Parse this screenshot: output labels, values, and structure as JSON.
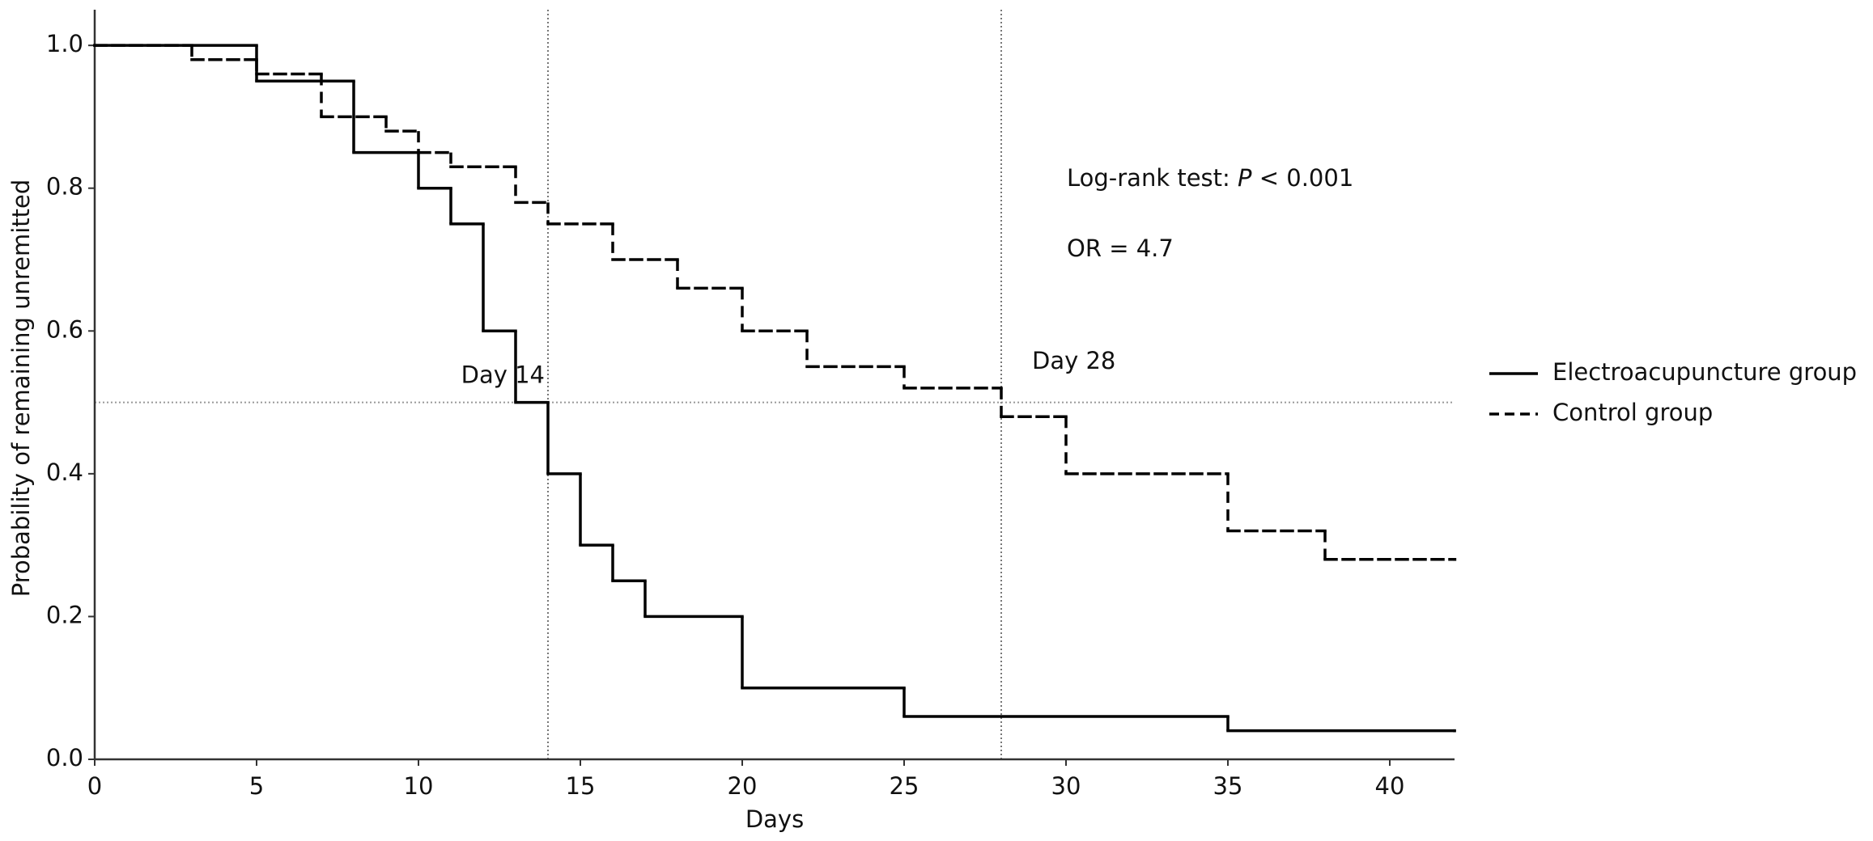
{
  "chart_data": {
    "type": "step",
    "x_label": "Days",
    "y_label": "Probability of remaining unremitted",
    "xlim": [
      0,
      42
    ],
    "ylim": [
      0,
      1.05
    ],
    "xticks": [
      0,
      5,
      10,
      15,
      20,
      25,
      30,
      35,
      40
    ],
    "yticks": [
      {
        "value": 0,
        "label": "0.0"
      },
      0.2,
      0.4,
      0.6,
      0.8,
      {
        "value": 1,
        "label": "1.0"
      }
    ],
    "legend": "right",
    "series": [
      {
        "name": "Electroacupuncture group",
        "color": "#000000",
        "dash": "solid",
        "x": [
          0,
          5,
          8,
          10,
          11,
          12,
          13,
          14,
          15,
          16,
          17,
          20,
          25,
          35,
          42
        ],
        "values": [
          1,
          0.95,
          0.85,
          0.8,
          0.75,
          0.6,
          0.5,
          0.4,
          0.3,
          0.25,
          0.2,
          0.1,
          0.06,
          0.04,
          0.04
        ]
      },
      {
        "name": "Control group",
        "color": "#000000",
        "dash": "dashed",
        "x": [
          0,
          3,
          5,
          7,
          9,
          10,
          11,
          13,
          14,
          16,
          18,
          20,
          22,
          25,
          28,
          30,
          35,
          38,
          42
        ],
        "values": [
          1,
          0.98,
          0.96,
          0.9,
          0.88,
          0.85,
          0.83,
          0.78,
          0.75,
          0.7,
          0.66,
          0.6,
          0.55,
          0.52,
          0.48,
          0.4,
          0.32,
          0.28,
          0.28
        ]
      }
    ],
    "reference_lines": {
      "x": [
        14,
        28
      ],
      "y": [
        0.5
      ]
    },
    "annotations": [
      {
        "text": "Day 14",
        "x": 14,
        "y": 0.5
      },
      {
        "text": "Day 28",
        "x": 28,
        "y": 0.52
      }
    ],
    "stats": {
      "test_prefix": "Log-rank test: ",
      "test_symbol": "P",
      "test_suffix": " < 0.001",
      "odds_ratio": "OR = 4.7"
    }
  }
}
